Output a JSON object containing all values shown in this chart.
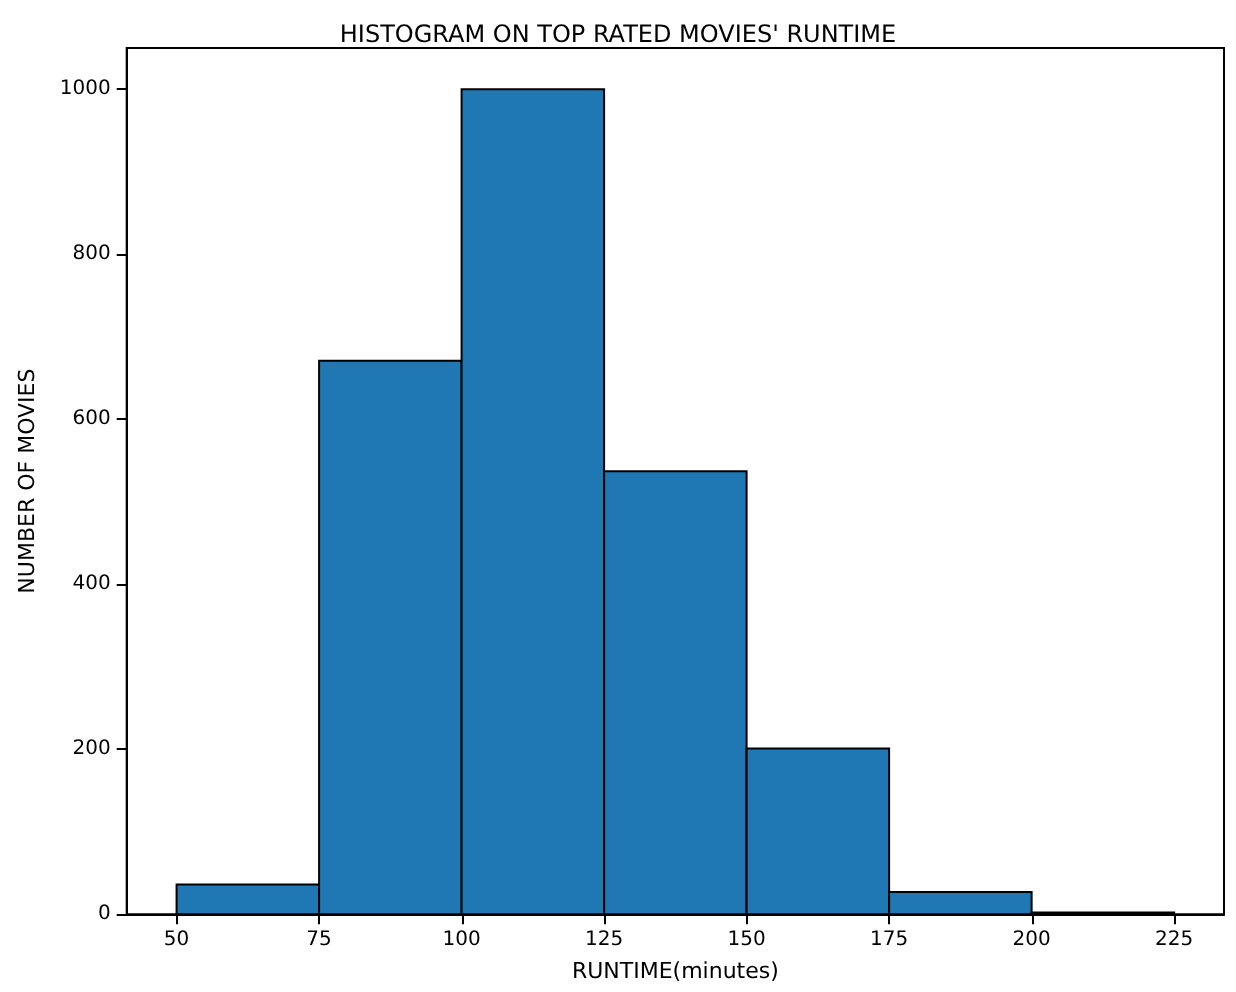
{
  "chart_data": {
    "type": "histogram",
    "title": "HISTOGRAM ON TOP RATED MOVIES' RUNTIME",
    "xlabel": "RUNTIME(minutes)",
    "ylabel": "NUMBER OF MOVIES",
    "bins": [
      50,
      75,
      100,
      125,
      150,
      175,
      200,
      225
    ],
    "values": [
      36,
      671,
      1000,
      537,
      201,
      27,
      2
    ],
    "color": "#1f77b4",
    "xlim": [
      41.25,
      233.75
    ],
    "ylim": [
      0,
      1050
    ],
    "xticks": [
      50,
      75,
      100,
      125,
      150,
      175,
      200,
      225
    ],
    "yticks": [
      0,
      200,
      400,
      600,
      800,
      1000
    ],
    "grid": false
  }
}
